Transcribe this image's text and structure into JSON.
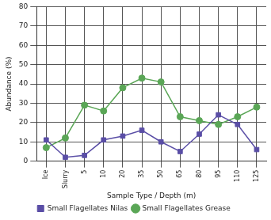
{
  "chart_data": {
    "type": "line",
    "x_label": "Sample Type / Depth (m)",
    "y_label": "Abundance (%)",
    "categories": [
      "Ice",
      "Slurry",
      "5",
      "10",
      "20",
      "35",
      "50",
      "65",
      "80",
      "95",
      "110",
      "125"
    ],
    "series": [
      {
        "name": "Small Flagellates Nilas",
        "color": "#5a4ea6",
        "marker": "square",
        "values": [
          11,
          2,
          3,
          11,
          13,
          16,
          10,
          5,
          14,
          24,
          19,
          6
        ]
      },
      {
        "name": "Small Flagellates Grease",
        "color": "#5aa656",
        "marker": "circle",
        "values": [
          7,
          12,
          29,
          26,
          38,
          43,
          41,
          23,
          21,
          19,
          23,
          28
        ]
      }
    ],
    "ylim": [
      0,
      80
    ],
    "yticks": [
      0,
      10,
      20,
      30,
      40,
      50,
      60,
      70,
      80
    ],
    "grid": true,
    "legend": "bottom"
  }
}
